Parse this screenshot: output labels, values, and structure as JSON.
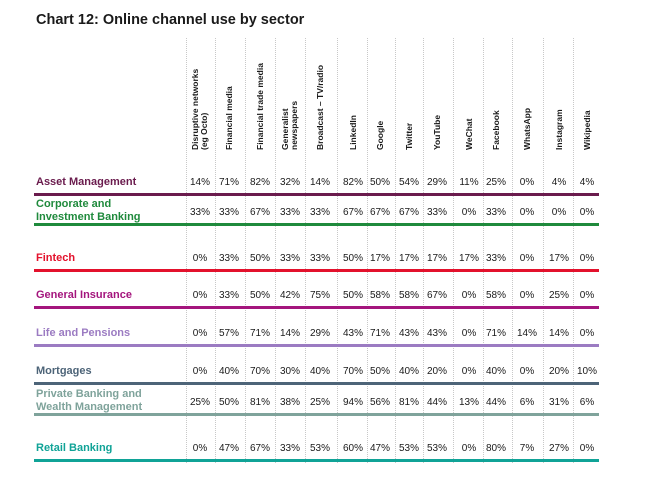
{
  "chart_data": {
    "type": "table",
    "title": "Chart 12: Online channel use by sector",
    "columns": [
      "Disruptive networks\n(eg Octo)",
      "Financial media",
      "Financial trade media",
      "Generalist\nnewspapers",
      "Broadcast – TV/radio",
      "LinkedIn",
      "Google",
      "Twitter",
      "YouTube",
      "WeChat",
      "Facebook",
      "WhatsApp",
      "Instagram",
      "Wikipedia"
    ],
    "rows": [
      {
        "label": "Asset Management",
        "color": "#6a1b4d",
        "values": [
          14,
          71,
          82,
          32,
          14,
          82,
          50,
          54,
          29,
          11,
          25,
          0,
          4,
          4
        ]
      },
      {
        "label": "Corporate and\nInvestment Banking",
        "color": "#1f8a3c",
        "values": [
          33,
          33,
          67,
          33,
          33,
          67,
          67,
          67,
          33,
          0,
          33,
          0,
          0,
          0
        ]
      },
      {
        "label": "Fintech",
        "color": "#e3112c",
        "values": [
          0,
          33,
          50,
          33,
          33,
          50,
          17,
          17,
          17,
          17,
          33,
          0,
          17,
          0
        ]
      },
      {
        "label": "General Insurance",
        "color": "#a4157d",
        "values": [
          0,
          33,
          50,
          42,
          75,
          50,
          58,
          58,
          67,
          0,
          58,
          0,
          25,
          0
        ]
      },
      {
        "label": "Life and Pensions",
        "color": "#9b7bc2",
        "values": [
          0,
          57,
          71,
          14,
          29,
          43,
          71,
          43,
          43,
          0,
          71,
          14,
          14,
          0
        ]
      },
      {
        "label": "Mortgages",
        "color": "#4d6478",
        "values": [
          0,
          40,
          70,
          30,
          40,
          70,
          50,
          40,
          20,
          0,
          40,
          0,
          20,
          10
        ]
      },
      {
        "label": "Private Banking and\nWealth Management",
        "color": "#7fa39b",
        "values": [
          25,
          50,
          81,
          38,
          25,
          94,
          56,
          81,
          44,
          13,
          44,
          6,
          31,
          6
        ]
      },
      {
        "label": "Retail Banking",
        "color": "#10a397",
        "values": [
          0,
          47,
          67,
          33,
          53,
          60,
          47,
          53,
          53,
          0,
          80,
          7,
          27,
          0
        ]
      }
    ],
    "value_suffix": "%"
  }
}
